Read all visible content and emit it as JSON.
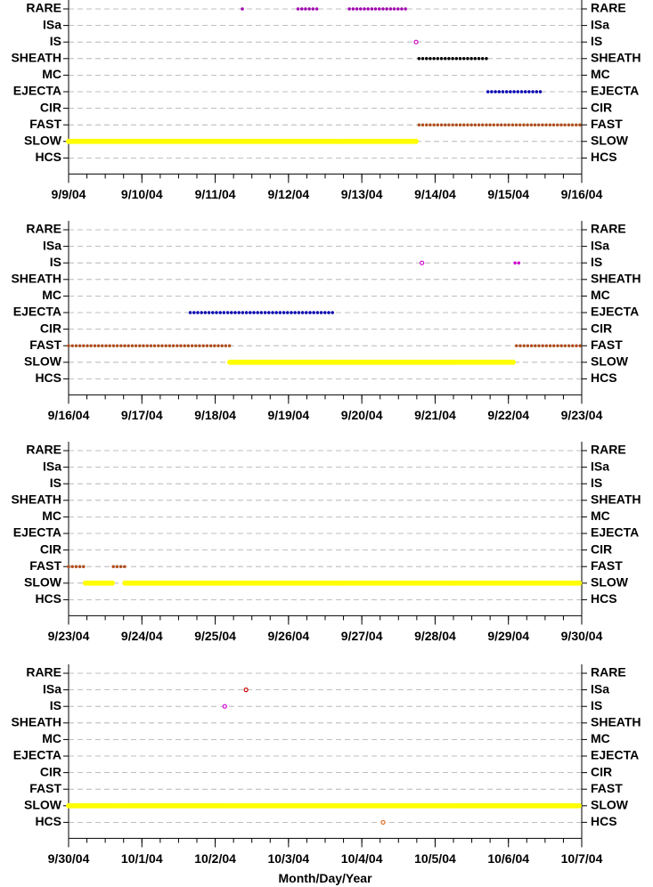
{
  "chart_data": [
    {
      "type": "timeline",
      "categories": [
        "RARE",
        "ISa",
        "IS",
        "SHEATH",
        "MC",
        "EJECTA",
        "CIR",
        "FAST",
        "SLOW",
        "HCS"
      ],
      "colors": [
        "#a000b0",
        "#cc0000",
        "#d000d0",
        "#000000",
        "#808080",
        "#0000b0",
        "#008000",
        "#b05020",
        "#ffff00",
        "#e07020"
      ],
      "intervals": [
        [
          [
            255.37,
            255.42
          ],
          [
            256.13,
            256.4
          ],
          [
            256.83,
            257.64
          ]
        ],
        [],
        [
          [
            257.74
          ]
        ],
        [
          [
            257.78,
            258.7
          ]
        ],
        [],
        [
          [
            258.72,
            259.48
          ]
        ],
        [],
        [
          [
            257.78,
            260.0
          ]
        ],
        [
          [
            253.0,
            257.74
          ]
        ],
        []
      ],
      "xlim": [
        253,
        260
      ],
      "xticks": [
        {
          "value": 253,
          "label": "9/9/04"
        },
        {
          "value": 254,
          "label": "9/10/04"
        },
        {
          "value": 255,
          "label": "9/11/04"
        },
        {
          "value": 256,
          "label": "9/12/04"
        },
        {
          "value": 257,
          "label": "9/13/04"
        },
        {
          "value": 258,
          "label": "9/14/04"
        },
        {
          "value": 259,
          "label": "9/15/04"
        },
        {
          "value": 260,
          "label": "9/16/04"
        }
      ],
      "grid": true
    },
    {
      "type": "timeline",
      "categories": [
        "RARE",
        "ISa",
        "IS",
        "SHEATH",
        "MC",
        "EJECTA",
        "CIR",
        "FAST",
        "SLOW",
        "HCS"
      ],
      "colors": [
        "#a000b0",
        "#cc0000",
        "#d000d0",
        "#000000",
        "#808080",
        "#0000b0",
        "#008000",
        "#b05020",
        "#ffff00",
        "#e07020"
      ],
      "intervals": [
        [],
        [],
        [
          [
            264.82
          ],
          [
            266.09,
            266.18
          ]
        ],
        [],
        [],
        [
          [
            261.66,
            263.62
          ]
        ],
        [],
        [
          [
            260.0,
            262.2
          ],
          [
            266.11,
            267.0
          ]
        ],
        [
          [
            262.2,
            266.09
          ]
        ],
        []
      ],
      "xlim": [
        260,
        267
      ],
      "xticks": [
        {
          "value": 260,
          "label": "9/16/04"
        },
        {
          "value": 261,
          "label": "9/17/04"
        },
        {
          "value": 262,
          "label": "9/18/04"
        },
        {
          "value": 263,
          "label": "9/19/04"
        },
        {
          "value": 264,
          "label": "9/20/04"
        },
        {
          "value": 265,
          "label": "9/21/04"
        },
        {
          "value": 266,
          "label": "9/22/04"
        },
        {
          "value": 267,
          "label": "9/23/04"
        }
      ],
      "grid": true
    },
    {
      "type": "timeline",
      "categories": [
        "RARE",
        "ISa",
        "IS",
        "SHEATH",
        "MC",
        "EJECTA",
        "CIR",
        "FAST",
        "SLOW",
        "HCS"
      ],
      "colors": [
        "#a000b0",
        "#cc0000",
        "#d000d0",
        "#000000",
        "#808080",
        "#0000b0",
        "#008000",
        "#b05020",
        "#ffff00",
        "#e07020"
      ],
      "intervals": [
        [],
        [],
        [],
        [],
        [],
        [],
        [],
        [
          [
            267.0,
            267.23
          ],
          [
            267.61,
            267.77
          ]
        ],
        [
          [
            267.23,
            267.61
          ],
          [
            267.77,
            274.0
          ]
        ],
        []
      ],
      "xlim": [
        267,
        274
      ],
      "xticks": [
        {
          "value": 267,
          "label": "9/23/04"
        },
        {
          "value": 268,
          "label": "9/24/04"
        },
        {
          "value": 269,
          "label": "9/25/04"
        },
        {
          "value": 270,
          "label": "9/26/04"
        },
        {
          "value": 271,
          "label": "9/27/04"
        },
        {
          "value": 272,
          "label": "9/28/04"
        },
        {
          "value": 273,
          "label": "9/29/04"
        },
        {
          "value": 274,
          "label": "9/30/04"
        }
      ],
      "grid": true
    },
    {
      "type": "timeline",
      "categories": [
        "RARE",
        "ISa",
        "IS",
        "SHEATH",
        "MC",
        "EJECTA",
        "CIR",
        "FAST",
        "SLOW",
        "HCS"
      ],
      "colors": [
        "#a000b0",
        "#cc0000",
        "#d000d0",
        "#000000",
        "#808080",
        "#0000b0",
        "#008000",
        "#b05020",
        "#ffff00",
        "#e07020"
      ],
      "intervals": [
        [],
        [
          [
            276.42
          ]
        ],
        [
          [
            276.13
          ]
        ],
        [],
        [],
        [],
        [],
        [],
        [
          [
            274.0,
            281.0
          ]
        ],
        [
          [
            278.29
          ]
        ]
      ],
      "xlim": [
        274,
        281
      ],
      "xticks": [
        {
          "value": 274,
          "label": "9/30/04"
        },
        {
          "value": 275,
          "label": "10/1/04"
        },
        {
          "value": 276,
          "label": "10/2/04"
        },
        {
          "value": 277,
          "label": "10/3/04"
        },
        {
          "value": 278,
          "label": "10/4/04"
        },
        {
          "value": 279,
          "label": "10/5/04"
        },
        {
          "value": 280,
          "label": "10/6/04"
        },
        {
          "value": 281,
          "label": "10/7/04"
        }
      ],
      "grid": true,
      "x_label": "Month/Day/Year"
    }
  ]
}
